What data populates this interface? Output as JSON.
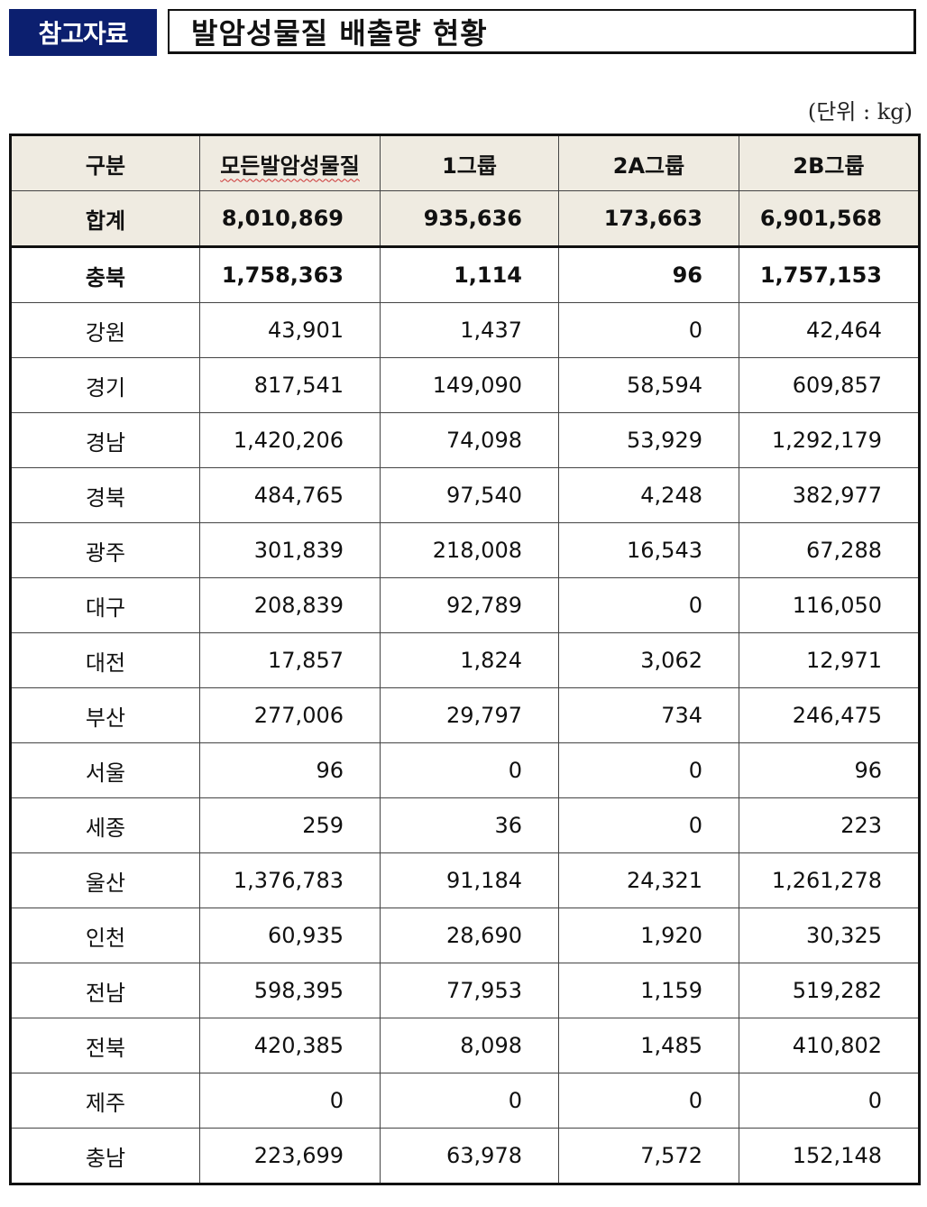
{
  "header": {
    "tag": "참고자료",
    "title": "발암성물질 배출량 현황"
  },
  "unit_label": "(단위 : kg)",
  "table": {
    "headers": [
      "구분",
      "모든발암성물질",
      "1그룹",
      "2A그룹",
      "2B그룹"
    ],
    "total": {
      "label": "합계",
      "values": [
        "8,010,869",
        "935,636",
        "173,663",
        "6,901,568"
      ]
    },
    "rows": [
      {
        "label": "충북",
        "values": [
          "1,758,363",
          "1,114",
          "96",
          "1,757,153"
        ]
      },
      {
        "label": "강원",
        "values": [
          "43,901",
          "1,437",
          "0",
          "42,464"
        ]
      },
      {
        "label": "경기",
        "values": [
          "817,541",
          "149,090",
          "58,594",
          "609,857"
        ]
      },
      {
        "label": "경남",
        "values": [
          "1,420,206",
          "74,098",
          "53,929",
          "1,292,179"
        ]
      },
      {
        "label": "경북",
        "values": [
          "484,765",
          "97,540",
          "4,248",
          "382,977"
        ]
      },
      {
        "label": "광주",
        "values": [
          "301,839",
          "218,008",
          "16,543",
          "67,288"
        ]
      },
      {
        "label": "대구",
        "values": [
          "208,839",
          "92,789",
          "0",
          "116,050"
        ]
      },
      {
        "label": "대전",
        "values": [
          "17,857",
          "1,824",
          "3,062",
          "12,971"
        ]
      },
      {
        "label": "부산",
        "values": [
          "277,006",
          "29,797",
          "734",
          "246,475"
        ]
      },
      {
        "label": "서울",
        "values": [
          "96",
          "0",
          "0",
          "96"
        ]
      },
      {
        "label": "세종",
        "values": [
          "259",
          "36",
          "0",
          "223"
        ]
      },
      {
        "label": "울산",
        "values": [
          "1,376,783",
          "91,184",
          "24,321",
          "1,261,278"
        ]
      },
      {
        "label": "인천",
        "values": [
          "60,935",
          "28,690",
          "1,920",
          "30,325"
        ]
      },
      {
        "label": "전남",
        "values": [
          "598,395",
          "77,953",
          "1,159",
          "519,282"
        ]
      },
      {
        "label": "전북",
        "values": [
          "420,385",
          "8,098",
          "1,485",
          "410,802"
        ]
      },
      {
        "label": "제주",
        "values": [
          "0",
          "0",
          "0",
          "0"
        ]
      },
      {
        "label": "충남",
        "values": [
          "223,699",
          "63,978",
          "7,572",
          "152,148"
        ]
      }
    ]
  },
  "colors": {
    "tag_bg": "#0c1f6f",
    "header_bg": "#efebe1"
  }
}
